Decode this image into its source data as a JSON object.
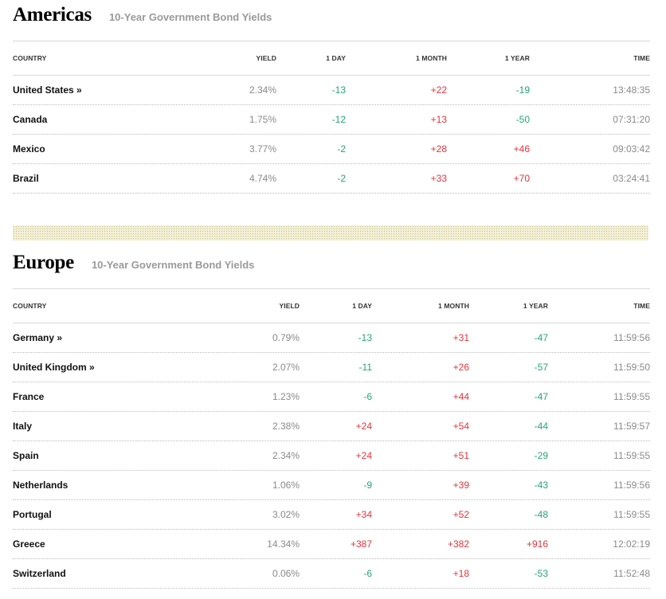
{
  "columns": [
    "COUNTRY",
    "YIELD",
    "1 DAY",
    "1 MONTH",
    "1 YEAR",
    "TIME"
  ],
  "colors": {
    "up": "#e8333a",
    "down": "#23a86d",
    "neutral": "#8a8a8a"
  },
  "americas": {
    "title": "Americas",
    "subtitle": "10-Year Government Bond Yields",
    "rows": [
      {
        "country": "United States »",
        "yield": "2.34%",
        "day": "-13",
        "month": "+22",
        "year": "-19",
        "time": "13:48:35"
      },
      {
        "country": "Canada",
        "yield": "1.75%",
        "day": "-12",
        "month": "+13",
        "year": "-50",
        "time": "07:31:20"
      },
      {
        "country": "Mexico",
        "yield": "3.77%",
        "day": "-2",
        "month": "+28",
        "year": "+46",
        "time": "09:03:42"
      },
      {
        "country": "Brazil",
        "yield": "4.74%",
        "day": "-2",
        "month": "+33",
        "year": "+70",
        "time": "03:24:41"
      }
    ]
  },
  "europe": {
    "title": "Europe",
    "subtitle": "10-Year Government Bond Yields",
    "rows": [
      {
        "country": "Germany »",
        "yield": "0.79%",
        "day": "-13",
        "month": "+31",
        "year": "-47",
        "time": "11:59:56"
      },
      {
        "country": "United Kingdom »",
        "yield": "2.07%",
        "day": "-11",
        "month": "+26",
        "year": "-57",
        "time": "11:59:50"
      },
      {
        "country": "France",
        "yield": "1.23%",
        "day": "-6",
        "month": "+44",
        "year": "-47",
        "time": "11:59:55"
      },
      {
        "country": "Italy",
        "yield": "2.38%",
        "day": "+24",
        "month": "+54",
        "year": "-44",
        "time": "11:59:57"
      },
      {
        "country": "Spain",
        "yield": "2.34%",
        "day": "+24",
        "month": "+51",
        "year": "-29",
        "time": "11:59:55"
      },
      {
        "country": "Netherlands",
        "yield": "1.06%",
        "day": "-9",
        "month": "+39",
        "year": "-43",
        "time": "11:59:56"
      },
      {
        "country": "Portugal",
        "yield": "3.02%",
        "day": "+34",
        "month": "+52",
        "year": "-48",
        "time": "11:59:55"
      },
      {
        "country": "Greece",
        "yield": "14.34%",
        "day": "+387",
        "month": "+382",
        "year": "+916",
        "time": "12:02:19"
      },
      {
        "country": "Switzerland",
        "yield": "0.06%",
        "day": "-6",
        "month": "+18",
        "year": "-53",
        "time": "11:52:48"
      }
    ]
  }
}
